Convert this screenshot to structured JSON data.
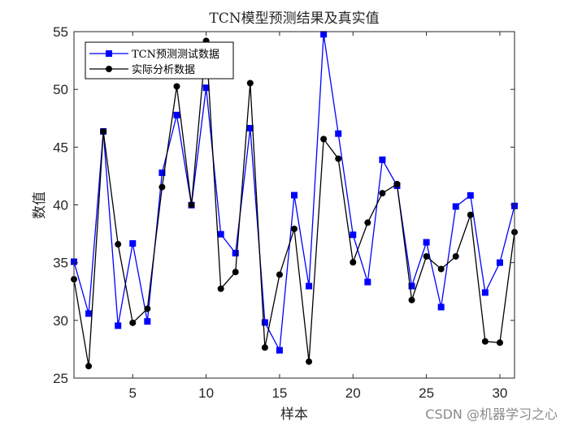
{
  "chart_data": {
    "type": "line",
    "title": "TCN模型预测结果及真实值",
    "xlabel": "样本",
    "ylabel": "数值",
    "xlim": [
      1,
      31
    ],
    "ylim": [
      25,
      55
    ],
    "xticks": [
      5,
      10,
      15,
      20,
      25,
      30
    ],
    "yticks": [
      25,
      30,
      35,
      40,
      45,
      50,
      55
    ],
    "grid": false,
    "legend_position": "upper-left",
    "x": [
      1,
      2,
      3,
      4,
      5,
      6,
      7,
      8,
      9,
      10,
      11,
      12,
      13,
      14,
      15,
      16,
      17,
      18,
      19,
      20,
      21,
      22,
      23,
      24,
      25,
      26,
      27,
      28,
      29,
      30,
      31
    ],
    "series": [
      {
        "name": "TCN预测测试数据",
        "color": "#0000ff",
        "marker": "square",
        "values": [
          35.08,
          30.59,
          46.36,
          29.54,
          36.66,
          29.91,
          42.78,
          47.78,
          39.98,
          50.14,
          37.46,
          35.82,
          46.64,
          29.82,
          27.41,
          40.84,
          32.97,
          54.77,
          46.17,
          37.41,
          33.32,
          43.91,
          41.66,
          32.97,
          36.76,
          31.15,
          39.86,
          40.82,
          32.41,
          35.0,
          39.91
        ]
      },
      {
        "name": "实际分析数据",
        "color": "#000000",
        "marker": "circle",
        "values": [
          33.56,
          26.04,
          46.36,
          36.59,
          29.79,
          31.01,
          41.54,
          50.26,
          40.0,
          54.2,
          32.74,
          34.19,
          50.54,
          27.65,
          33.96,
          37.92,
          26.43,
          45.7,
          44.0,
          35.03,
          38.46,
          41.01,
          41.8,
          31.76,
          35.54,
          34.45,
          35.54,
          39.14,
          28.18,
          28.07,
          37.64
        ]
      }
    ]
  },
  "watermark": "CSDN @机器学习之心"
}
